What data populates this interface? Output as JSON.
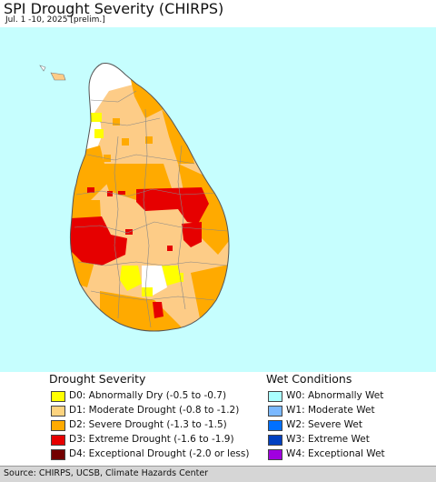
{
  "header": {
    "title": "SPI Drought Severity (CHIRPS)",
    "subtitle": "Jul. 1 -10, 2025 [prelim.]"
  },
  "map": {
    "ocean_color": "#c6fefe",
    "base_color": "#fdcc87",
    "region": "Sri Lanka"
  },
  "legend": {
    "drought": {
      "heading": "Drought Severity",
      "items": [
        {
          "label": "D0: Abnormally Dry (-0.5 to -0.7)",
          "color": "#ffff00"
        },
        {
          "label": "D1: Moderate Drought (-0.8 to -1.2)",
          "color": "#fcd37f"
        },
        {
          "label": "D2: Severe Drought (-1.3 to -1.5)",
          "color": "#ffaa00"
        },
        {
          "label": "D3: Extreme Drought (-1.6 to -1.9)",
          "color": "#e60000"
        },
        {
          "label": "D4: Exceptional Drought (-2.0 or less)",
          "color": "#730000"
        }
      ]
    },
    "wet": {
      "heading": "Wet Conditions",
      "items": [
        {
          "label": "W0: Abnormally Wet",
          "color": "#aaffff"
        },
        {
          "label": "W1: Moderate Wet",
          "color": "#7ab8ff"
        },
        {
          "label": "W2: Severe Wet",
          "color": "#0070ff"
        },
        {
          "label": "W3: Extreme Wet",
          "color": "#0040c0"
        },
        {
          "label": "W4: Exceptional Wet",
          "color": "#a000e0"
        }
      ]
    }
  },
  "footer": {
    "credit": "Source: CHIRPS, UCSB, Climate Hazards Center"
  }
}
